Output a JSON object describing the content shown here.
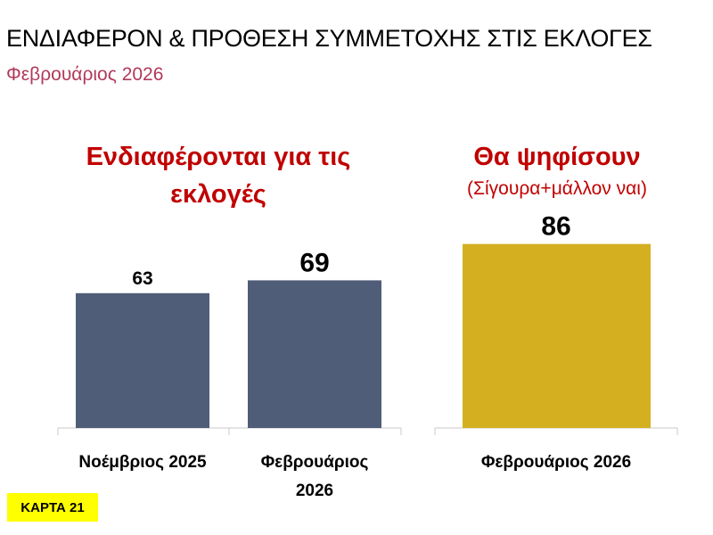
{
  "title": "ΕΝΔΙΑΦΕΡΟΝ & ΠΡΟΘΕΣΗ ΣΥΜΜΕΤΟΧΗΣ ΣΤΙΣ ΕΚΛΟΓΕΣ",
  "subtitle": "Φεβρουάριος 2026",
  "badge": "ΚΑΡΤΑ 21",
  "colors": {
    "accent": "#c00000",
    "subtitle": "#b03a5b",
    "bar_dark": "#4f5d78",
    "bar_gold": "#d4b021",
    "badge_bg": "#ffff00"
  },
  "chart_data": [
    {
      "type": "bar",
      "title": "Ενδιαφέρονται για τις εκλογές",
      "categories": [
        "Νοέμβριος 2025",
        "Φεβρουάριος 2026"
      ],
      "values": [
        63,
        69
      ],
      "color": "#4f5d78",
      "ylim": [
        0,
        100
      ]
    },
    {
      "type": "bar",
      "title": "Θα ψηφίσουν",
      "subtitle": "(Σίγουρα+μάλλον ναι)",
      "categories": [
        "Φεβρουάριος 2026"
      ],
      "values": [
        86
      ],
      "color": "#d4b021",
      "ylim": [
        0,
        100
      ]
    }
  ]
}
